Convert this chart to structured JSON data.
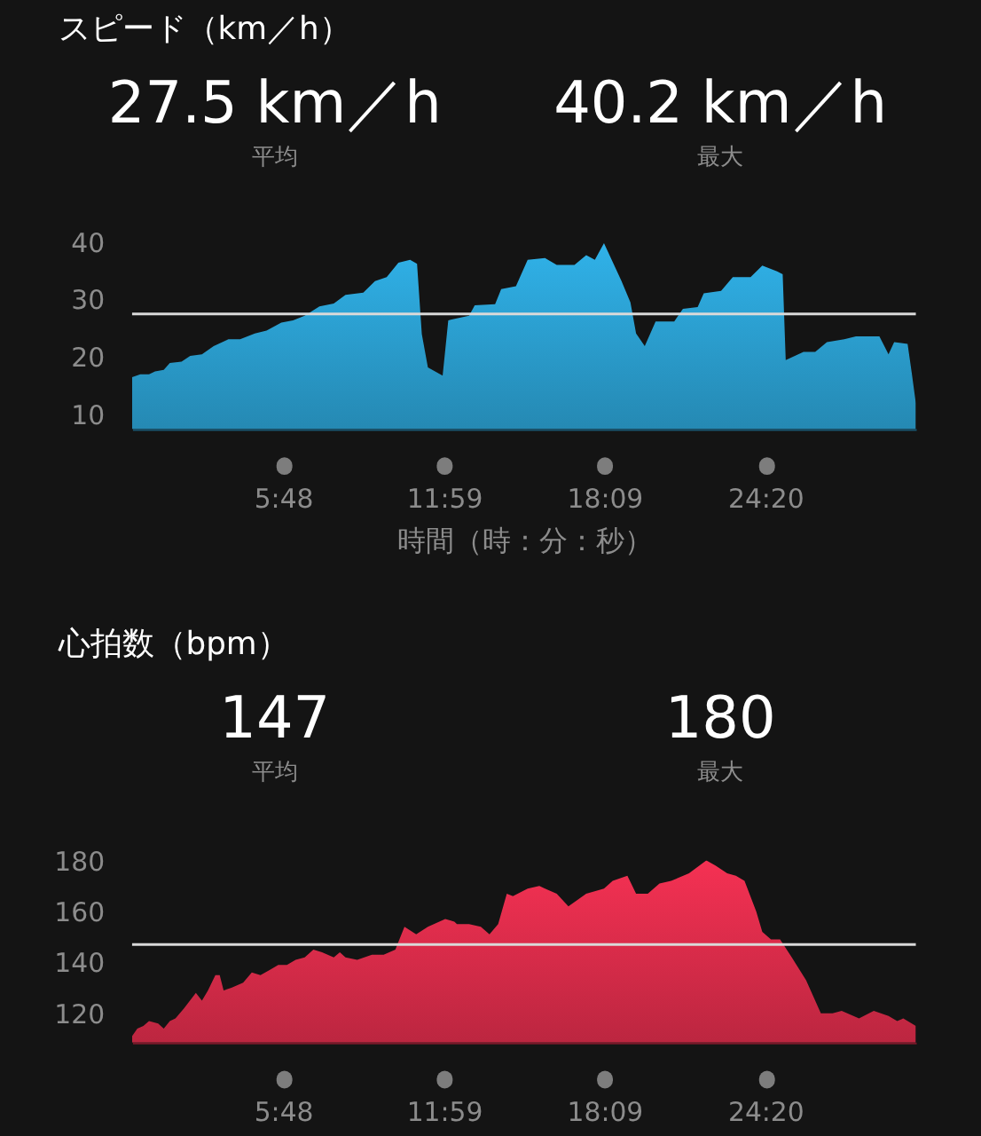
{
  "chart_data": [
    {
      "type": "area",
      "title": "スピード（km／h）",
      "annotations": [
        "27.5 km／h",
        "平均",
        "40.2 km／h",
        "最大"
      ],
      "xlabel": "時間（時：分：秒）",
      "x": [
        0,
        19,
        39,
        53,
        73,
        87,
        114,
        134,
        161,
        188,
        222,
        249,
        283,
        310,
        344,
        371,
        398,
        432,
        465,
        492,
        533,
        560,
        587,
        614,
        641,
        657,
        668,
        682,
        716,
        729,
        777,
        790,
        837,
        851,
        885,
        912,
        952,
        979,
        1020,
        1047,
        1067,
        1088,
        1128,
        1149,
        1162,
        1182,
        1207,
        1250,
        1270,
        1304,
        1318,
        1358,
        1385,
        1426,
        1453,
        1487,
        1500,
        1507,
        1548,
        1575,
        1602,
        1642,
        1669,
        1723,
        1744,
        1757,
        1788,
        1798,
        1807
      ],
      "values": [
        16.5,
        17.0,
        17.0,
        17.5,
        17.8,
        19.0,
        19.2,
        20.2,
        20.5,
        21.9,
        23.1,
        23.1,
        24.1,
        24.6,
        26.0,
        26.4,
        27.2,
        28.8,
        29.3,
        30.8,
        31.2,
        33.2,
        33.9,
        36.4,
        36.9,
        36.2,
        24.0,
        18.2,
        16.8,
        26.4,
        27.2,
        29.0,
        29.2,
        31.8,
        32.3,
        36.9,
        37.2,
        36.0,
        36.0,
        37.7,
        36.9,
        39.8,
        33.3,
        29.5,
        24.1,
        21.9,
        26.2,
        26.2,
        28.4,
        28.7,
        31.1,
        31.5,
        33.9,
        33.9,
        35.9,
        34.9,
        34.4,
        19.5,
        20.9,
        20.9,
        22.6,
        23.1,
        23.6,
        23.6,
        20.5,
        22.6,
        22.3,
        17.0,
        12.0
      ],
      "color": "#2b9fd0",
      "xlim": [
        0,
        1807
      ],
      "ylim": [
        7.5,
        40
      ],
      "xticks": [
        {
          "value": 348,
          "label": "5:48"
        },
        {
          "value": 719,
          "label": "11:59"
        },
        {
          "value": 1089,
          "label": "18:09"
        },
        {
          "value": 1460,
          "label": "24:20"
        }
      ],
      "yticks": [
        10,
        20,
        30,
        40
      ],
      "ref_lines": [
        {
          "axis": "y",
          "value": 27.5,
          "color": "#d9d9d9"
        }
      ]
    },
    {
      "type": "area",
      "title": "心拍数（bpm）",
      "annotations": [
        "147",
        "平均",
        "180",
        "最大"
      ],
      "x": [
        0,
        12,
        26,
        39,
        60,
        73,
        87,
        100,
        120,
        147,
        161,
        175,
        192,
        202,
        211,
        229,
        256,
        276,
        296,
        317,
        337,
        357,
        377,
        398,
        418,
        438,
        465,
        479,
        492,
        519,
        553,
        580,
        607,
        628,
        655,
        682,
        722,
        743,
        749,
        777,
        804,
        824,
        844,
        864,
        878,
        912,
        939,
        952,
        979,
        1006,
        1047,
        1088,
        1108,
        1142,
        1162,
        1189,
        1216,
        1243,
        1284,
        1324,
        1345,
        1372,
        1392,
        1412,
        1439,
        1453,
        1473,
        1494,
        1521,
        1554,
        1588,
        1615,
        1636,
        1676,
        1710,
        1744,
        1764,
        1778,
        1807
      ],
      "values": [
        111,
        114,
        115,
        117,
        116,
        114,
        117,
        118,
        122,
        128,
        125,
        129,
        135,
        135,
        129,
        130,
        132,
        136,
        135,
        137,
        139,
        139,
        141,
        142,
        145,
        144,
        142,
        144,
        142,
        141,
        143,
        143,
        145,
        154,
        151,
        154,
        157,
        156,
        155,
        155,
        154,
        151,
        155,
        167,
        166,
        169,
        170,
        169,
        167,
        162,
        167,
        169,
        172,
        174,
        167,
        167,
        171,
        172,
        175,
        180,
        178,
        175,
        174,
        172,
        160,
        152,
        149,
        149,
        142,
        133,
        120,
        120,
        121,
        118,
        121,
        119,
        117,
        118,
        115
      ],
      "color": "#db2c4a",
      "xlim": [
        0,
        1807
      ],
      "ylim": [
        108.5,
        180
      ],
      "xticks": [
        {
          "value": 348,
          "label": "5:48"
        },
        {
          "value": 719,
          "label": "11:59"
        },
        {
          "value": 1089,
          "label": "18:09"
        },
        {
          "value": 1460,
          "label": "24:20"
        }
      ],
      "yticks": [
        120,
        140,
        160,
        180
      ],
      "ref_lines": [
        {
          "axis": "y",
          "value": 147,
          "color": "#d9d9d9"
        }
      ]
    }
  ]
}
